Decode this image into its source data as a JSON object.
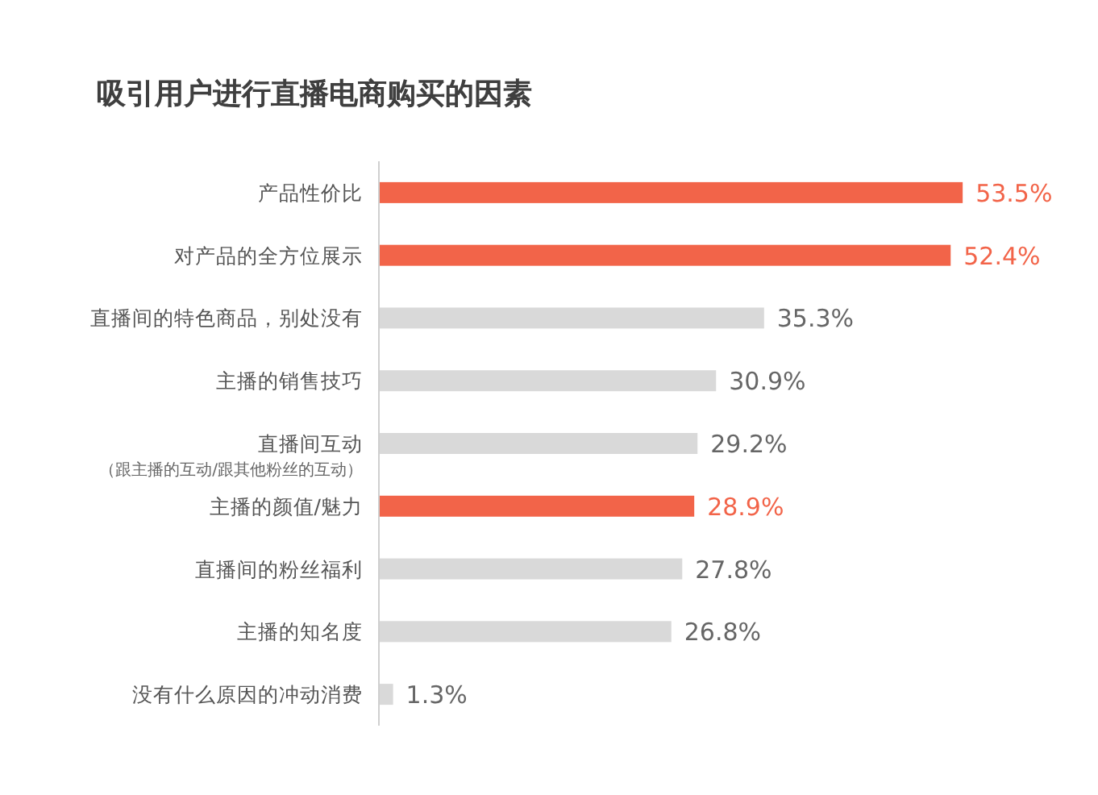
{
  "chart_data": {
    "type": "bar",
    "orientation": "horizontal",
    "title": "吸引用户进行直播电商购买的因素",
    "categories": [
      "产品性价比",
      "对产品的全方位展示",
      "直播间的特色商品，别处没有",
      "主播的销售技巧",
      "直播间互动（跟主播的互动/跟其他粉丝的互动）",
      "主播的颜值/魅力",
      "直播间的粉丝福利",
      "主播的知名度",
      "没有什么原因的冲动消费"
    ],
    "values": [
      53.5,
      52.4,
      35.3,
      30.9,
      29.2,
      28.9,
      27.8,
      26.8,
      1.3
    ],
    "colors": [
      "#f26449",
      "#f26449",
      "#d9d9d9",
      "#d9d9d9",
      "#d9d9d9",
      "#f26449",
      "#d9d9d9",
      "#d9d9d9",
      "#d9d9d9"
    ],
    "value_labels": [
      "53.5%",
      "52.4%",
      "35.3%",
      "30.9%",
      "29.2%",
      "28.9%",
      "27.8%",
      "26.8%",
      "1.3%"
    ]
  }
}
